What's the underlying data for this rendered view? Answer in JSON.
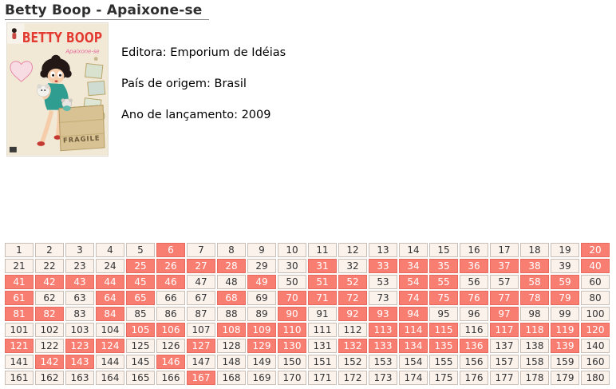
{
  "page": {
    "title": "Betty Boop - Apaixone-se",
    "background_color": "#ffffff"
  },
  "cover": {
    "name": "betty-boop-album-cover",
    "logo_text": "BETTY BOOP",
    "subtitle_text": "Apaixone-se",
    "crate_text": "FRAGILE",
    "colors": {
      "background": "#ece0c8",
      "logo_red": "#e23c31",
      "subtitle_pink": "#e5659a",
      "dress_teal": "#2f9d90",
      "crate_tan": "#d8c294"
    }
  },
  "album": {
    "fields": [
      {
        "label": "Editora:",
        "value": "Emporium de Idéias"
      },
      {
        "label": "País de origem:",
        "value": "Brasil"
      },
      {
        "label": "Ano de lançamento:",
        "value": "2009"
      }
    ]
  },
  "grid": {
    "columns": 20,
    "rows": 9,
    "start": 1,
    "end": 180,
    "cell_background": "#fcf2ec",
    "highlight_background": "#f87e72",
    "highlighted_numbers": [
      6,
      20,
      25,
      26,
      27,
      28,
      31,
      33,
      34,
      35,
      36,
      37,
      38,
      40,
      41,
      42,
      43,
      44,
      45,
      46,
      49,
      51,
      52,
      54,
      55,
      58,
      59,
      61,
      64,
      65,
      68,
      70,
      71,
      72,
      74,
      75,
      76,
      77,
      78,
      79,
      81,
      82,
      84,
      90,
      92,
      93,
      94,
      97,
      105,
      106,
      108,
      109,
      110,
      113,
      114,
      115,
      117,
      118,
      119,
      120,
      121,
      123,
      124,
      127,
      129,
      130,
      132,
      133,
      134,
      135,
      136,
      139,
      142,
      143,
      146,
      167
    ]
  }
}
